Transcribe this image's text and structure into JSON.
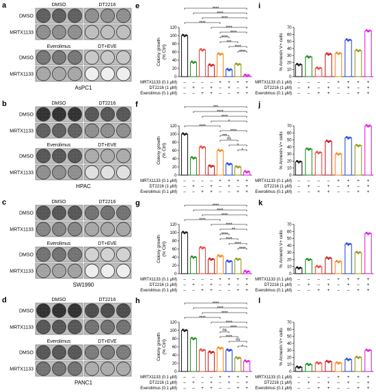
{
  "bar_colors": [
    "#1a1a1a",
    "#249124",
    "#f2453d",
    "#cc1f1f",
    "#f48b1f",
    "#2b4ee0",
    "#9b981c",
    "#e21fe2"
  ],
  "plate_panels": [
    {
      "letter": "a",
      "cell_line": "AsPC1",
      "sections": [
        {
          "headers": [
            "DMSO",
            "DT2216"
          ],
          "rows": [
            "DMSO",
            "MRTX1133"
          ]
        },
        {
          "headers": [
            "Everolimus",
            "DT+EVE"
          ],
          "rows": [
            "DMSO",
            "MRTX1133"
          ]
        }
      ]
    },
    {
      "letter": "b",
      "cell_line": "HPAC",
      "sections": [
        {
          "headers": [
            "DMSO",
            "DT2216"
          ],
          "rows": [
            "DMSO",
            "MRTX1133"
          ]
        },
        {
          "headers": [
            "Everolimus",
            "DT+EVE"
          ],
          "rows": [
            "DMSO",
            "MRTX1133"
          ]
        }
      ]
    },
    {
      "letter": "c",
      "cell_line": "SW1990",
      "sections": [
        {
          "headers": [
            "DMSO",
            "DT2216"
          ],
          "rows": [
            "DMSO",
            "MRTX1133"
          ]
        },
        {
          "headers": [
            "Everolimus",
            "DT+EVE"
          ],
          "rows": [
            "DMSO",
            "MRTX1133"
          ]
        }
      ]
    },
    {
      "letter": "d",
      "cell_line": "PANC1",
      "sections": [
        {
          "headers": [
            "DMSO",
            "DT2216"
          ],
          "rows": [
            "DMSO",
            "MRTX1133"
          ]
        },
        {
          "headers": [
            "Everolimus",
            "DT+EVE"
          ],
          "rows": [
            "DMSO",
            "MRTX1133"
          ]
        }
      ]
    }
  ],
  "chart_data": [
    {
      "letter": "e",
      "type": "bar",
      "ylabel": [
        "Colony growth",
        "(% Ctrl)"
      ],
      "ylim": [
        0,
        120
      ],
      "yticks": [
        0,
        20,
        40,
        60,
        80,
        100,
        120
      ],
      "values": [
        100,
        35,
        65,
        28,
        55,
        17,
        30,
        3
      ],
      "conditions": {
        "labels": [
          "MRTX1133 (0.1 µM)",
          "DT2216 (1 µM)",
          "Everolimus (0.1 µM)"
        ],
        "signs": [
          [
            "–",
            "–",
            "–",
            "–",
            "+",
            "+",
            "+",
            "+"
          ],
          [
            "–",
            "+",
            "–",
            "+",
            "–",
            "+",
            "–",
            "+"
          ],
          [
            "–",
            "–",
            "+",
            "+",
            "–",
            "–",
            "+",
            "+"
          ]
        ]
      },
      "significance": [
        {
          "from": 1,
          "to": 8,
          "label": "****"
        },
        {
          "from": 2,
          "to": 8,
          "label": "****"
        },
        {
          "from": 3,
          "to": 8,
          "label": "****"
        },
        {
          "from": 1,
          "to": 5,
          "label": "****"
        },
        {
          "from": 4,
          "to": 8,
          "label": "****"
        },
        {
          "from": 5,
          "to": 8,
          "label": "****"
        },
        {
          "from": 5,
          "to": 6,
          "label": "****"
        },
        {
          "from": 5,
          "to": 7,
          "label": "***"
        },
        {
          "from": 6,
          "to": 8,
          "label": "****"
        },
        {
          "from": 7,
          "to": 8,
          "label": "****"
        }
      ]
    },
    {
      "letter": "f",
      "type": "bar",
      "ylabel": [
        "Colony growth",
        "(% Ctrl)"
      ],
      "ylim": [
        0,
        120
      ],
      "yticks": [
        0,
        20,
        40,
        60,
        80,
        100,
        120
      ],
      "values": [
        100,
        42,
        68,
        22,
        60,
        27,
        20,
        8
      ],
      "conditions": {
        "labels": [
          "MRTX1133 (0.1 µM)",
          "DT2216 (1 µM)",
          "Everolimus (0.1 µM)"
        ],
        "signs": [
          [
            "–",
            "–",
            "–",
            "–",
            "+",
            "+",
            "+",
            "+"
          ],
          [
            "–",
            "+",
            "–",
            "+",
            "–",
            "+",
            "–",
            "+"
          ],
          [
            "–",
            "–",
            "+",
            "+",
            "–",
            "–",
            "+",
            "+"
          ]
        ]
      },
      "significance": [
        {
          "from": 1,
          "to": 8,
          "label": "***"
        },
        {
          "from": 2,
          "to": 8,
          "label": "****"
        },
        {
          "from": 3,
          "to": 8,
          "label": "****"
        },
        {
          "from": 4,
          "to": 8,
          "label": "*"
        },
        {
          "from": 1,
          "to": 5,
          "label": "****"
        },
        {
          "from": 5,
          "to": 8,
          "label": "****"
        },
        {
          "from": 5,
          "to": 6,
          "label": "***"
        },
        {
          "from": 5,
          "to": 7,
          "label": "ns"
        },
        {
          "from": 6,
          "to": 8,
          "label": "*"
        },
        {
          "from": 7,
          "to": 8,
          "label": "*"
        }
      ]
    },
    {
      "letter": "g",
      "type": "bar",
      "ylabel": [
        "Colony growth",
        "(% Ctrl)"
      ],
      "ylim": [
        0,
        120
      ],
      "yticks": [
        0,
        20,
        40,
        60,
        80,
        100,
        120
      ],
      "values": [
        100,
        40,
        63,
        35,
        43,
        30,
        35,
        5
      ],
      "conditions": {
        "labels": [
          "MRTX1133 (0.1 µM)",
          "DT2216 (1 µM)",
          "Everolimus (0.1 µM)"
        ],
        "signs": [
          [
            "–",
            "–",
            "–",
            "–",
            "+",
            "+",
            "+",
            "+"
          ],
          [
            "–",
            "+",
            "–",
            "+",
            "–",
            "+",
            "–",
            "+"
          ],
          [
            "–",
            "–",
            "+",
            "+",
            "–",
            "–",
            "+",
            "+"
          ]
        ]
      },
      "significance": [
        {
          "from": 1,
          "to": 8,
          "label": "****"
        },
        {
          "from": 2,
          "to": 8,
          "label": "****"
        },
        {
          "from": 3,
          "to": 8,
          "label": "****"
        },
        {
          "from": 1,
          "to": 5,
          "label": "****"
        },
        {
          "from": 4,
          "to": 8,
          "label": "****"
        },
        {
          "from": 5,
          "to": 8,
          "label": "**"
        },
        {
          "from": 5,
          "to": 6,
          "label": "****"
        },
        {
          "from": 5,
          "to": 7,
          "label": "****"
        },
        {
          "from": 6,
          "to": 8,
          "label": "****"
        },
        {
          "from": 7,
          "to": 8,
          "label": "****"
        }
      ]
    },
    {
      "letter": "h",
      "type": "bar",
      "ylabel": [
        "Colony growth",
        "(% Ctrl)"
      ],
      "ylim": [
        0,
        120
      ],
      "yticks": [
        0,
        20,
        40,
        60,
        80,
        100,
        120
      ],
      "values": [
        100,
        80,
        52,
        47,
        57,
        52,
        33,
        25
      ],
      "conditions": {
        "labels": [
          "MRTX1133 (0.1 µM)",
          "DT2216 (1 µM)",
          "Everolimus (0.1 µM)"
        ],
        "signs": [
          [
            "–",
            "–",
            "–",
            "–",
            "+",
            "+",
            "+",
            "+"
          ],
          [
            "–",
            "+",
            "–",
            "+",
            "–",
            "+",
            "–",
            "+"
          ],
          [
            "–",
            "–",
            "+",
            "+",
            "–",
            "–",
            "+",
            "+"
          ]
        ]
      },
      "significance": [
        {
          "from": 1,
          "to": 8,
          "label": "****"
        },
        {
          "from": 2,
          "to": 8,
          "label": "****"
        },
        {
          "from": 3,
          "to": 8,
          "label": "****"
        },
        {
          "from": 1,
          "to": 5,
          "label": "****"
        },
        {
          "from": 4,
          "to": 8,
          "label": "****"
        },
        {
          "from": 5,
          "to": 8,
          "label": "****"
        },
        {
          "from": 5,
          "to": 6,
          "label": "ns"
        },
        {
          "from": 5,
          "to": 7,
          "label": "****"
        },
        {
          "from": 6,
          "to": 8,
          "label": "ns"
        },
        {
          "from": 7,
          "to": 8,
          "label": "*"
        }
      ]
    },
    {
      "letter": "i",
      "type": "bar",
      "ylabel": [
        "% Annexin V+ cells"
      ],
      "ylim": [
        0,
        70
      ],
      "yticks": [
        0,
        10,
        20,
        30,
        40,
        50,
        60,
        70
      ],
      "values": [
        17,
        28,
        12,
        32,
        33,
        52,
        37,
        65
      ],
      "conditions": {
        "labels": [
          "MRTX1133 (0.1 µM)",
          "DT2216 (1 µM)",
          "Everolimus (0.1 µM)"
        ],
        "signs": [
          [
            "–",
            "–",
            "–",
            "–",
            "+",
            "+",
            "+",
            "+"
          ],
          [
            "–",
            "+",
            "–",
            "+",
            "–",
            "+",
            "–",
            "+"
          ],
          [
            "–",
            "–",
            "+",
            "+",
            "–",
            "–",
            "+",
            "+"
          ]
        ]
      }
    },
    {
      "letter": "j",
      "type": "bar",
      "ylabel": [
        "% Annexin V+ cells"
      ],
      "ylim": [
        0,
        70
      ],
      "yticks": [
        0,
        10,
        20,
        30,
        40,
        50,
        60,
        70
      ],
      "values": [
        19,
        37,
        32,
        48,
        30,
        53,
        42,
        70
      ],
      "conditions": {
        "labels": [
          "MRTX1133 (0.1 µM)",
          "DT2216 (1 µM)",
          "Everolimus (0.1 µM)"
        ],
        "signs": [
          [
            "–",
            "–",
            "–",
            "–",
            "+",
            "+",
            "+",
            "+"
          ],
          [
            "–",
            "+",
            "–",
            "+",
            "–",
            "+",
            "–",
            "+"
          ],
          [
            "–",
            "–",
            "+",
            "+",
            "–",
            "–",
            "+",
            "+"
          ]
        ]
      }
    },
    {
      "letter": "k",
      "type": "bar",
      "ylabel": [
        "% Annexin V+ cells"
      ],
      "ylim": [
        0,
        70
      ],
      "yticks": [
        0,
        10,
        20,
        30,
        40,
        50,
        60,
        70
      ],
      "values": [
        8,
        20,
        10,
        22,
        17,
        42,
        30,
        57
      ],
      "conditions": {
        "labels": [
          "MRTX1133 (0.1 µM)",
          "DT2216 (1 µM)",
          "Everolimus (0.1 µM)"
        ],
        "signs": [
          [
            "–",
            "–",
            "–",
            "–",
            "+",
            "+",
            "+",
            "+"
          ],
          [
            "–",
            "+",
            "–",
            "+",
            "–",
            "+",
            "–",
            "+"
          ],
          [
            "–",
            "–",
            "+",
            "+",
            "–",
            "–",
            "+",
            "+"
          ]
        ]
      }
    },
    {
      "letter": "l",
      "type": "bar",
      "ylabel": [
        "% Annexin V+ cells"
      ],
      "ylim": [
        0,
        70
      ],
      "yticks": [
        0,
        10,
        20,
        30,
        40,
        50,
        60,
        70
      ],
      "values": [
        6,
        10,
        12,
        14,
        12,
        17,
        20,
        30
      ],
      "conditions": {
        "labels": [
          "MRTX1133 (0.1 µM)",
          "DT2216 (1 µM)",
          "Everolimus (0.1 µM)"
        ],
        "signs": [
          [
            "–",
            "–",
            "–",
            "–",
            "+",
            "+",
            "+",
            "+"
          ],
          [
            "–",
            "+",
            "–",
            "+",
            "–",
            "+",
            "–",
            "+"
          ],
          [
            "–",
            "–",
            "+",
            "+",
            "–",
            "–",
            "+",
            "+"
          ]
        ]
      }
    }
  ]
}
